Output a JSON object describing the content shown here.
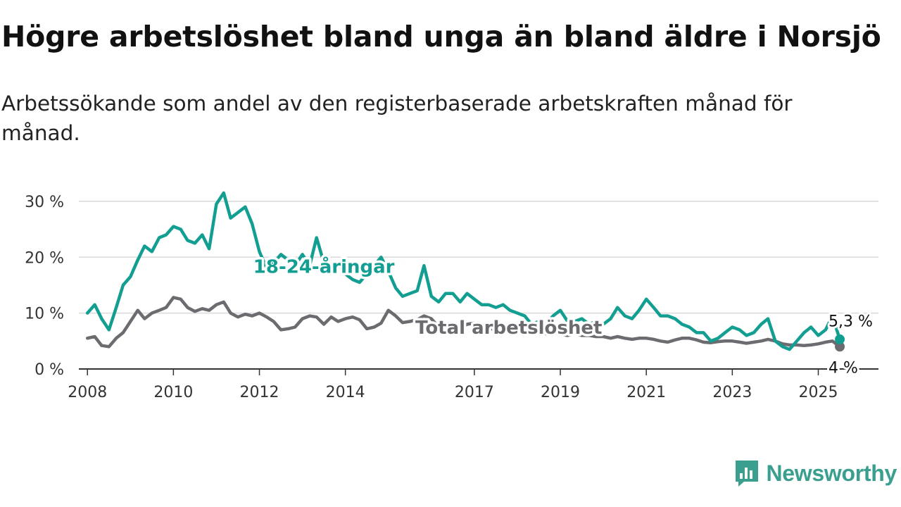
{
  "title": "Högre arbetslöshet bland unga än bland äldre i Norsjö",
  "subtitle": "Arbetssökande som andel av den registerbaserade arbetskraften månad för månad.",
  "brand": "Newsworthy",
  "colors": {
    "youth": "#139e92",
    "total": "#6b6b70",
    "grid": "#d9d9d9",
    "axis": "#333333",
    "brand": "#3a9f8f"
  },
  "chart_data": {
    "type": "line",
    "title": "Högre arbetslöshet bland unga än bland äldre i Norsjö",
    "xlabel": "",
    "ylabel": "",
    "ylim": [
      0,
      32
    ],
    "yticks": [
      0,
      10,
      20,
      30
    ],
    "ytick_labels": [
      "0 %",
      "10 %",
      "20 %",
      "30 %"
    ],
    "xticks": [
      2008,
      2010,
      2012,
      2014,
      2017,
      2019,
      2021,
      2023,
      2025
    ],
    "xtick_labels": [
      "2008",
      "2010",
      "2012",
      "2014",
      "2017",
      "2019",
      "2021",
      "2023",
      "2025"
    ],
    "xlim": [
      2007.8,
      2026.4
    ],
    "grid": true,
    "series": [
      {
        "name": "18-24-åringar",
        "end_label": "5,3 %",
        "x": [
          2008.0,
          2008.17,
          2008.33,
          2008.5,
          2008.67,
          2008.83,
          2009.0,
          2009.17,
          2009.33,
          2009.5,
          2009.67,
          2009.83,
          2010.0,
          2010.17,
          2010.33,
          2010.5,
          2010.67,
          2010.83,
          2011.0,
          2011.17,
          2011.33,
          2011.5,
          2011.67,
          2011.83,
          2012.0,
          2012.17,
          2012.33,
          2012.5,
          2012.67,
          2012.83,
          2013.0,
          2013.17,
          2013.33,
          2013.5,
          2013.67,
          2013.83,
          2014.0,
          2014.17,
          2014.33,
          2014.5,
          2014.67,
          2014.83,
          2015.0,
          2015.17,
          2015.33,
          2015.5,
          2015.67,
          2015.83,
          2016.0,
          2016.17,
          2016.33,
          2016.5,
          2016.67,
          2016.83,
          2017.0,
          2017.17,
          2017.33,
          2017.5,
          2017.67,
          2017.83,
          2018.0,
          2018.17,
          2018.33,
          2018.5,
          2018.67,
          2018.83,
          2019.0,
          2019.17,
          2019.33,
          2019.5,
          2019.67,
          2019.83,
          2020.0,
          2020.17,
          2020.33,
          2020.5,
          2020.67,
          2020.83,
          2021.0,
          2021.17,
          2021.33,
          2021.5,
          2021.67,
          2021.83,
          2022.0,
          2022.17,
          2022.33,
          2022.5,
          2022.67,
          2022.83,
          2023.0,
          2023.17,
          2023.33,
          2023.5,
          2023.67,
          2023.83,
          2024.0,
          2024.17,
          2024.33,
          2024.5,
          2024.67,
          2024.83,
          2025.0,
          2025.17,
          2025.33,
          2025.5
        ],
        "values": [
          10.0,
          11.5,
          9.0,
          7.0,
          11.0,
          15.0,
          16.5,
          19.5,
          22.0,
          21.0,
          23.5,
          24.0,
          25.5,
          25.0,
          23.0,
          22.5,
          24.0,
          21.5,
          29.5,
          31.5,
          27.0,
          28.0,
          29.0,
          26.0,
          21.0,
          18.0,
          19.0,
          20.5,
          19.5,
          18.5,
          20.5,
          18.5,
          23.5,
          19.0,
          18.5,
          19.0,
          17.0,
          16.0,
          15.5,
          17.0,
          18.5,
          20.0,
          17.5,
          14.5,
          13.0,
          13.5,
          14.0,
          18.5,
          13.0,
          12.0,
          13.5,
          13.5,
          12.0,
          13.5,
          12.5,
          11.5,
          11.5,
          11.0,
          11.5,
          10.5,
          10.0,
          9.5,
          8.0,
          8.5,
          8.0,
          9.5,
          10.5,
          8.5,
          8.5,
          9.0,
          8.0,
          8.5,
          8.0,
          9.0,
          11.0,
          9.5,
          9.0,
          10.5,
          12.5,
          11.0,
          9.5,
          9.5,
          9.0,
          8.0,
          7.5,
          6.5,
          6.5,
          5.0,
          5.5,
          6.5,
          7.5,
          7.0,
          6.0,
          6.5,
          8.0,
          9.0,
          5.0,
          4.0,
          3.5,
          5.0,
          6.5,
          7.5,
          6.0,
          7.0,
          9.5,
          5.3
        ]
      },
      {
        "name": "Total arbetslöshet",
        "end_label": "4 %",
        "x": [
          2008.0,
          2008.17,
          2008.33,
          2008.5,
          2008.67,
          2008.83,
          2009.0,
          2009.17,
          2009.33,
          2009.5,
          2009.67,
          2009.83,
          2010.0,
          2010.17,
          2010.33,
          2010.5,
          2010.67,
          2010.83,
          2011.0,
          2011.17,
          2011.33,
          2011.5,
          2011.67,
          2011.83,
          2012.0,
          2012.17,
          2012.33,
          2012.5,
          2012.67,
          2012.83,
          2013.0,
          2013.17,
          2013.33,
          2013.5,
          2013.67,
          2013.83,
          2014.0,
          2014.17,
          2014.33,
          2014.5,
          2014.67,
          2014.83,
          2015.0,
          2015.17,
          2015.33,
          2015.5,
          2015.67,
          2015.83,
          2016.0,
          2016.17,
          2016.33,
          2016.5,
          2016.67,
          2016.83,
          2017.0,
          2017.17,
          2017.33,
          2017.5,
          2017.67,
          2017.83,
          2018.0,
          2018.17,
          2018.33,
          2018.5,
          2018.67,
          2018.83,
          2019.0,
          2019.17,
          2019.33,
          2019.5,
          2019.67,
          2019.83,
          2020.0,
          2020.17,
          2020.33,
          2020.5,
          2020.67,
          2020.83,
          2021.0,
          2021.17,
          2021.33,
          2021.5,
          2021.67,
          2021.83,
          2022.0,
          2022.17,
          2022.33,
          2022.5,
          2022.67,
          2022.83,
          2023.0,
          2023.17,
          2023.33,
          2023.5,
          2023.67,
          2023.83,
          2024.0,
          2024.17,
          2024.33,
          2024.5,
          2024.67,
          2024.83,
          2025.0,
          2025.17,
          2025.33,
          2025.5
        ],
        "values": [
          5.5,
          5.8,
          4.2,
          4.0,
          5.5,
          6.5,
          8.5,
          10.5,
          9.0,
          10.0,
          10.5,
          11.0,
          12.8,
          12.5,
          11.0,
          10.3,
          10.8,
          10.5,
          11.5,
          12.0,
          10.0,
          9.3,
          9.8,
          9.5,
          10.0,
          9.3,
          8.5,
          7.0,
          7.2,
          7.5,
          9.0,
          9.5,
          9.3,
          8.0,
          9.3,
          8.5,
          9.0,
          9.3,
          8.8,
          7.2,
          7.5,
          8.2,
          10.5,
          9.5,
          8.3,
          8.5,
          8.8,
          9.5,
          9.0,
          7.5,
          8.0,
          7.5,
          7.3,
          8.0,
          8.2,
          7.5,
          7.3,
          7.0,
          7.2,
          7.0,
          6.8,
          7.0,
          6.5,
          6.5,
          6.3,
          6.5,
          6.2,
          6.0,
          6.3,
          6.0,
          6.0,
          5.8,
          5.8,
          5.5,
          5.8,
          5.5,
          5.3,
          5.5,
          5.5,
          5.3,
          5.0,
          4.8,
          5.2,
          5.5,
          5.5,
          5.2,
          4.8,
          4.7,
          4.9,
          5.0,
          5.0,
          4.8,
          4.6,
          4.8,
          5.0,
          5.3,
          5.0,
          4.5,
          4.3,
          4.3,
          4.2,
          4.3,
          4.5,
          4.8,
          5.0,
          4.0
        ]
      }
    ]
  }
}
